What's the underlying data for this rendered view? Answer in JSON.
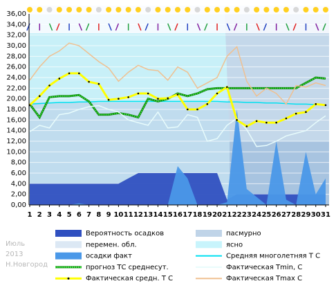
{
  "chart_data": {
    "type": "line",
    "x": [
      1,
      2,
      3,
      4,
      5,
      6,
      7,
      8,
      9,
      10,
      11,
      12,
      13,
      14,
      15,
      16,
      17,
      18,
      19,
      20,
      21,
      22,
      23,
      24,
      25,
      26,
      27,
      28,
      29,
      30,
      31
    ],
    "xlim": [
      1,
      31
    ],
    "ylim": [
      0,
      36
    ],
    "yticks": [
      {
        "value": 0,
        "label": "0,00"
      },
      {
        "value": 2,
        "label": "2,00"
      },
      {
        "value": 4,
        "label": "4,00"
      },
      {
        "value": 6,
        "label": "6,00"
      },
      {
        "value": 8,
        "label": "8,00"
      },
      {
        "value": 10,
        "label": "10,00"
      },
      {
        "value": 12,
        "label": "12,00"
      },
      {
        "value": 14,
        "label": "14,00"
      },
      {
        "value": 16,
        "label": "16,00"
      },
      {
        "value": 18,
        "label": "18,00"
      },
      {
        "value": 20,
        "label": "20,00"
      },
      {
        "value": 22,
        "label": "22,00"
      },
      {
        "value": 24,
        "label": "24,00"
      },
      {
        "value": 26,
        "label": "26,00"
      },
      {
        "value": 28,
        "label": "28,00"
      },
      {
        "value": 30,
        "label": "30,00"
      },
      {
        "value": 32,
        "label": "32,00"
      },
      {
        "value": 34,
        "label": "34,00"
      },
      {
        "value": 36,
        "label": "36,00"
      }
    ],
    "grid": true,
    "series": [
      {
        "name": "Вероятность осадков",
        "kind": "area",
        "color": "#3050c0",
        "values": [
          4,
          4,
          4,
          4,
          4,
          4,
          4,
          4,
          4,
          4,
          5,
          6,
          6,
          6,
          6,
          6,
          6,
          6,
          6,
          6,
          1,
          2,
          2,
          2,
          2,
          2,
          2,
          2,
          2,
          2,
          2
        ]
      },
      {
        "name": "осадки факт",
        "kind": "area",
        "color": "#4a98e8",
        "values": [
          0,
          0,
          0,
          0,
          0,
          0.3,
          0,
          0,
          0,
          0,
          0,
          0,
          0,
          0,
          0,
          7.3,
          5,
          0,
          0,
          0,
          0.5,
          18,
          3,
          1.5,
          0,
          12,
          1,
          0,
          10,
          2,
          5
        ]
      },
      {
        "name": "Средняя многолетняя Т С",
        "kind": "line",
        "color": "#00e0f0",
        "values": [
          19,
          19.1,
          19.2,
          19.3,
          19.3,
          19.4,
          19.4,
          19.5,
          19.5,
          19.5,
          19.5,
          19.5,
          19.5,
          19.5,
          19.5,
          19.5,
          19.5,
          19.5,
          19.5,
          19.5,
          19.4,
          19.4,
          19.3,
          19.3,
          19.2,
          19.2,
          19.1,
          19,
          19,
          18.9,
          18.8
        ]
      },
      {
        "name": "прогноз ТС среднесут.",
        "kind": "line",
        "dash": "dotted",
        "color": "#108010",
        "values": [
          19,
          16.5,
          20.3,
          20.5,
          20.5,
          20.7,
          19.5,
          17,
          17,
          17.3,
          17,
          16.5,
          20,
          19.5,
          20,
          21,
          20.5,
          21,
          21.8,
          22,
          22,
          22,
          22,
          22,
          22,
          22,
          22,
          22,
          23,
          24,
          23.8
        ]
      },
      {
        "name": "Фактическая Tmin, C",
        "kind": "line",
        "color": "#e8fcfc",
        "values": [
          13.8,
          15,
          14.5,
          17,
          17.3,
          18,
          18.5,
          18.7,
          18,
          17.5,
          16,
          15.5,
          15,
          17.5,
          14.5,
          14.7,
          17,
          16.5,
          12,
          12.5,
          15,
          16.3,
          14.2,
          11,
          11.2,
          12,
          13,
          13.5,
          14,
          15.5,
          16.8
        ]
      },
      {
        "name": "Фактическая Tmax C",
        "kind": "line",
        "color": "#f0c090",
        "values": [
          23.5,
          26,
          28,
          29,
          30.5,
          30,
          28.5,
          27,
          25.8,
          23.3,
          25,
          26.3,
          25.5,
          25.3,
          23.5,
          26,
          25,
          22,
          23,
          24,
          28,
          29.8,
          23.3,
          20.5,
          22,
          21,
          19,
          22.5,
          22.2,
          23,
          22.5
        ]
      },
      {
        "name": "Фактическая средн. Т С",
        "kind": "line",
        "marker": true,
        "color": "#ffff00",
        "values": [
          18.8,
          20.5,
          22.5,
          23.8,
          24.8,
          24.8,
          23.2,
          22.8,
          19.8,
          20,
          20.3,
          21,
          21,
          20,
          20.1,
          20.8,
          18,
          18,
          19,
          21,
          22.2,
          16,
          14.8,
          15.8,
          15.5,
          15.5,
          16.3,
          17.2,
          17.5,
          19,
          18.8
        ]
      }
    ],
    "sky_legend": [
      {
        "name": "пасмурно",
        "color": "#c0d4e8"
      },
      {
        "name": "перемен. обл.",
        "color": "#dce8f4"
      },
      {
        "name": "ясно",
        "color": "#c8f4fc"
      }
    ],
    "annotations": [
      "Июль",
      "2013",
      "Н.Новгород"
    ]
  }
}
